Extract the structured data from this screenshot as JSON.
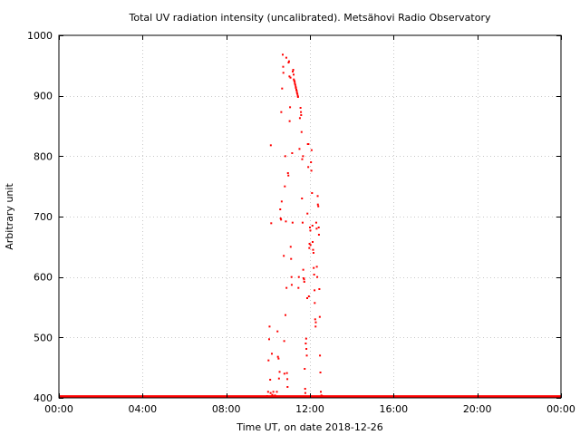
{
  "chart_data": {
    "type": "scatter",
    "title": "Total UV radiation intensity (uncalibrated). Metsähovi Radio Observatory",
    "xlabel": "Time UT, on date 2018-12-26",
    "ylabel": "Arbitrary unit",
    "xlim": [
      0,
      24
    ],
    "ylim": [
      400,
      1000
    ],
    "grid": true,
    "point_color": "#ff0000",
    "x_ticks": [
      {
        "value": 0,
        "label": "00:00"
      },
      {
        "value": 4,
        "label": "04:00"
      },
      {
        "value": 8,
        "label": "08:00"
      },
      {
        "value": 12,
        "label": "12:00"
      },
      {
        "value": 16,
        "label": "16:00"
      },
      {
        "value": 20,
        "label": "20:00"
      },
      {
        "value": 24,
        "label": "00:00"
      }
    ],
    "y_ticks": [
      {
        "value": 400,
        "label": "400"
      },
      {
        "value": 500,
        "label": "500"
      },
      {
        "value": 600,
        "label": "600"
      },
      {
        "value": 700,
        "label": "700"
      },
      {
        "value": 800,
        "label": "800"
      },
      {
        "value": 900,
        "label": "900"
      },
      {
        "value": 1000,
        "label": "1000"
      }
    ],
    "baseline": {
      "value": 402,
      "x_start": 0,
      "x_end": 24
    },
    "points": [
      [
        9.95,
        403
      ],
      [
        10.0,
        410
      ],
      [
        10.02,
        462
      ],
      [
        10.05,
        497
      ],
      [
        10.07,
        518
      ],
      [
        10.1,
        430
      ],
      [
        10.12,
        408
      ],
      [
        10.13,
        818
      ],
      [
        10.15,
        689
      ],
      [
        10.18,
        473
      ],
      [
        10.2,
        405
      ],
      [
        10.25,
        410
      ],
      [
        10.3,
        402
      ],
      [
        10.33,
        404
      ],
      [
        10.37,
        402
      ],
      [
        10.42,
        410
      ],
      [
        10.45,
        510
      ],
      [
        10.47,
        468
      ],
      [
        10.5,
        465
      ],
      [
        10.52,
        432
      ],
      [
        10.55,
        443
      ],
      [
        10.58,
        712
      ],
      [
        10.6,
        697
      ],
      [
        10.62,
        695
      ],
      [
        10.63,
        873
      ],
      [
        10.65,
        725
      ],
      [
        10.67,
        912
      ],
      [
        10.7,
        968
      ],
      [
        10.72,
        948
      ],
      [
        10.73,
        938
      ],
      [
        10.75,
        635
      ],
      [
        10.77,
        494
      ],
      [
        10.78,
        440
      ],
      [
        10.8,
        750
      ],
      [
        10.82,
        800
      ],
      [
        10.83,
        537
      ],
      [
        10.85,
        692
      ],
      [
        10.87,
        963
      ],
      [
        10.88,
        582
      ],
      [
        10.9,
        441
      ],
      [
        10.92,
        431
      ],
      [
        10.93,
        418
      ],
      [
        10.95,
        772
      ],
      [
        10.97,
        768
      ],
      [
        10.98,
        955
      ],
      [
        11.0,
        957
      ],
      [
        11.02,
        932
      ],
      [
        11.03,
        858
      ],
      [
        11.05,
        881
      ],
      [
        11.07,
        930
      ],
      [
        11.08,
        650
      ],
      [
        11.1,
        630
      ],
      [
        11.12,
        600
      ],
      [
        11.13,
        587
      ],
      [
        11.15,
        805
      ],
      [
        11.17,
        690
      ],
      [
        11.18,
        940
      ],
      [
        11.2,
        943
      ],
      [
        11.22,
        935
      ],
      [
        11.23,
        927
      ],
      [
        11.25,
        925
      ],
      [
        11.27,
        923
      ],
      [
        11.28,
        920
      ],
      [
        11.3,
        918
      ],
      [
        11.32,
        915
      ],
      [
        11.33,
        913
      ],
      [
        11.35,
        910
      ],
      [
        11.37,
        908
      ],
      [
        11.38,
        905
      ],
      [
        11.4,
        903
      ],
      [
        11.42,
        900
      ],
      [
        11.43,
        898
      ],
      [
        11.45,
        582
      ],
      [
        11.47,
        600
      ],
      [
        11.5,
        812
      ],
      [
        11.52,
        863
      ],
      [
        11.55,
        880
      ],
      [
        11.57,
        873
      ],
      [
        11.58,
        868
      ],
      [
        11.6,
        840
      ],
      [
        11.62,
        730
      ],
      [
        11.63,
        795
      ],
      [
        11.65,
        690
      ],
      [
        11.67,
        800
      ],
      [
        11.68,
        612
      ],
      [
        11.7,
        598
      ],
      [
        11.72,
        596
      ],
      [
        11.73,
        592
      ],
      [
        11.75,
        448
      ],
      [
        11.77,
        415
      ],
      [
        11.78,
        408
      ],
      [
        11.8,
        490
      ],
      [
        11.82,
        498
      ],
      [
        11.83,
        481
      ],
      [
        11.85,
        470
      ],
      [
        11.87,
        565
      ],
      [
        11.88,
        705
      ],
      [
        11.9,
        820
      ],
      [
        11.92,
        782
      ],
      [
        11.93,
        820
      ],
      [
        11.95,
        568
      ],
      [
        11.97,
        648
      ],
      [
        11.98,
        655
      ],
      [
        12.0,
        682
      ],
      [
        12.02,
        677
      ],
      [
        12.03,
        653
      ],
      [
        12.05,
        790
      ],
      [
        12.07,
        776
      ],
      [
        12.08,
        810
      ],
      [
        12.1,
        739
      ],
      [
        12.12,
        685
      ],
      [
        12.13,
        658
      ],
      [
        12.15,
        645
      ],
      [
        12.17,
        640
      ],
      [
        12.18,
        615
      ],
      [
        12.2,
        604
      ],
      [
        12.22,
        578
      ],
      [
        12.23,
        557
      ],
      [
        12.25,
        530
      ],
      [
        12.27,
        518
      ],
      [
        12.28,
        525
      ],
      [
        12.3,
        690
      ],
      [
        12.32,
        680
      ],
      [
        12.33,
        617
      ],
      [
        12.35,
        600
      ],
      [
        12.37,
        734
      ],
      [
        12.38,
        720
      ],
      [
        12.4,
        717
      ],
      [
        12.42,
        682
      ],
      [
        12.43,
        670
      ],
      [
        12.45,
        580
      ],
      [
        12.47,
        534
      ],
      [
        12.48,
        470
      ],
      [
        12.5,
        442
      ],
      [
        12.52,
        410
      ],
      [
        12.55,
        404
      ],
      [
        12.58,
        403
      ],
      [
        12.62,
        402
      ],
      [
        12.7,
        402
      ]
    ]
  }
}
